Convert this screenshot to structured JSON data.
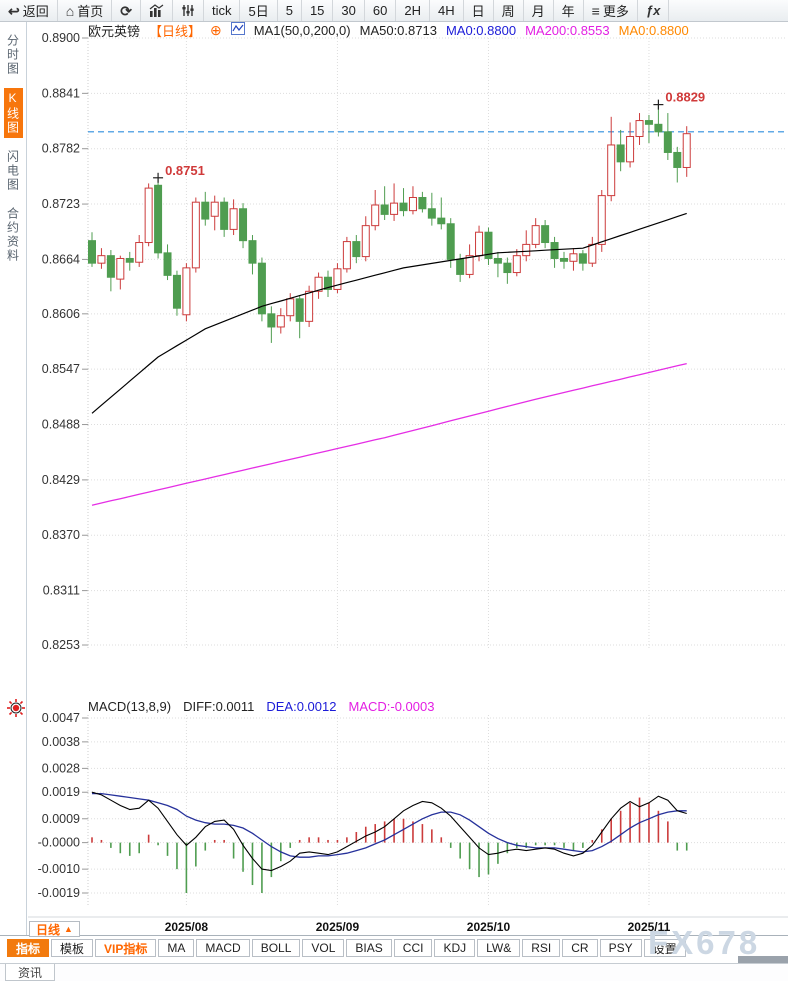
{
  "icons": {
    "back": "↩",
    "home": "⌂",
    "refresh": "⟳",
    "menu": "≡",
    "fx": "ƒx",
    "plus_circle": "⊕",
    "triangle_up": "▲"
  },
  "toolbar": {
    "items": [
      {
        "name": "back",
        "icon": "back",
        "label": "返回"
      },
      {
        "name": "home",
        "icon": "home",
        "label": "首页"
      },
      {
        "name": "refresh",
        "icon": "refresh",
        "label": ""
      },
      {
        "name": "chart-type",
        "icon": "bars",
        "label": ""
      },
      {
        "name": "indicator-settings",
        "icon": "sliders",
        "label": ""
      },
      {
        "name": "interval-tick",
        "label": "tick"
      },
      {
        "name": "interval-5d",
        "label": "5日"
      },
      {
        "name": "interval-5m",
        "label": "5"
      },
      {
        "name": "interval-15m",
        "label": "15"
      },
      {
        "name": "interval-30m",
        "label": "30"
      },
      {
        "name": "interval-60m",
        "label": "60"
      },
      {
        "name": "interval-2h",
        "label": "2H"
      },
      {
        "name": "interval-4h",
        "label": "4H"
      },
      {
        "name": "interval-day",
        "label": "日"
      },
      {
        "name": "interval-week",
        "label": "周"
      },
      {
        "name": "interval-month",
        "label": "月"
      },
      {
        "name": "interval-year",
        "label": "年"
      },
      {
        "name": "more",
        "icon": "menu",
        "label": "更多"
      },
      {
        "name": "formula",
        "icon": "fx",
        "label": ""
      }
    ]
  },
  "sidebar": {
    "items": [
      {
        "name": "time-chart",
        "label": "分时图",
        "active": false
      },
      {
        "name": "kline-chart",
        "label": "K线图",
        "active": true
      },
      {
        "name": "flash-chart",
        "label": "闪电图",
        "active": false
      },
      {
        "name": "contract-info",
        "label": "合约资料",
        "active": false
      }
    ]
  },
  "chart_header": {
    "symbol": "欧元英镑",
    "period": "【日线】",
    "ma_settings": "MA1(50,0,200,0)",
    "ma50": "MA50:0.8713",
    "ma0_fast": "MA0:0.8800",
    "ma200": "MA200:0.8553",
    "ma0_slow": "MA0:0.8800"
  },
  "macd_header": {
    "title": "MACD(13,8,9)",
    "diff": "DIFF:0.0011",
    "dea": "DEA:0.0012",
    "macd": "MACD:-0.0003"
  },
  "bottom": {
    "period_label": "日线",
    "tabs": [
      {
        "name": "indicator",
        "label": "指标",
        "active": true
      },
      {
        "name": "template",
        "label": "模板"
      },
      {
        "name": "vip-indicator",
        "label": "VIP指标",
        "vip": true
      },
      {
        "name": "ma",
        "label": "MA"
      },
      {
        "name": "macd",
        "label": "MACD"
      },
      {
        "name": "boll",
        "label": "BOLL"
      },
      {
        "name": "vol",
        "label": "VOL"
      },
      {
        "name": "bias",
        "label": "BIAS"
      },
      {
        "name": "cci",
        "label": "CCI"
      },
      {
        "name": "kdj",
        "label": "KDJ"
      },
      {
        "name": "lw",
        "label": "LW&"
      },
      {
        "name": "rsi",
        "label": "RSI"
      },
      {
        "name": "cr",
        "label": "CR"
      },
      {
        "name": "psy",
        "label": "PSY"
      },
      {
        "name": "settings",
        "label": "设置"
      }
    ],
    "watermark": "FX678",
    "news_tab": "资讯"
  },
  "chart_data": {
    "type": "candlestick+macd",
    "symbol": "EUR/GBP daily",
    "main": {
      "y_ticks": [
        {
          "label": "0.8900",
          "value": 0.89
        },
        {
          "label": "0.8841",
          "value": 0.8841
        },
        {
          "label": "0.8782",
          "value": 0.8782
        },
        {
          "label": "0.8723",
          "value": 0.8723
        },
        {
          "label": "0.8664",
          "value": 0.8664
        },
        {
          "label": "0.8606",
          "value": 0.8606
        },
        {
          "label": "0.8547",
          "value": 0.8547
        },
        {
          "label": "0.8488",
          "value": 0.8488
        },
        {
          "label": "0.8429",
          "value": 0.8429
        },
        {
          "label": "0.8370",
          "value": 0.837
        },
        {
          "label": "0.8311",
          "value": 0.8311
        },
        {
          "label": "0.8253",
          "value": 0.8253
        }
      ],
      "x_ticks": [
        {
          "label": "2025/08",
          "index": 11
        },
        {
          "label": "2025/09",
          "index": 27
        },
        {
          "label": "2025/10",
          "index": 43
        },
        {
          "label": "2025/11",
          "index": 60
        }
      ],
      "last_price_line": 0.88,
      "markers": [
        {
          "index": 8,
          "price": 0.8751,
          "label": "0.8751"
        },
        {
          "index": 61,
          "price": 0.8829,
          "label": "0.8829"
        }
      ],
      "candles": [
        [
          0.8684,
          0.8693,
          0.8656,
          0.866
        ],
        [
          0.866,
          0.8676,
          0.8654,
          0.8668
        ],
        [
          0.8668,
          0.8674,
          0.863,
          0.8645
        ],
        [
          0.8643,
          0.8668,
          0.8632,
          0.8665
        ],
        [
          0.8665,
          0.8672,
          0.8652,
          0.8661
        ],
        [
          0.8661,
          0.869,
          0.8656,
          0.8682
        ],
        [
          0.8682,
          0.8745,
          0.8678,
          0.874
        ],
        [
          0.8743,
          0.8751,
          0.8665,
          0.8671
        ],
        [
          0.8671,
          0.868,
          0.8642,
          0.8647
        ],
        [
          0.8647,
          0.8652,
          0.8604,
          0.8612
        ],
        [
          0.8605,
          0.866,
          0.8598,
          0.8655
        ],
        [
          0.8655,
          0.873,
          0.865,
          0.8725
        ],
        [
          0.8725,
          0.8736,
          0.87,
          0.8707
        ],
        [
          0.871,
          0.8732,
          0.8695,
          0.8725
        ],
        [
          0.8725,
          0.873,
          0.8688,
          0.8696
        ],
        [
          0.8696,
          0.8728,
          0.869,
          0.8718
        ],
        [
          0.8718,
          0.8724,
          0.8676,
          0.8684
        ],
        [
          0.8684,
          0.869,
          0.8648,
          0.866
        ],
        [
          0.866,
          0.8666,
          0.8598,
          0.8606
        ],
        [
          0.8606,
          0.8614,
          0.8575,
          0.8592
        ],
        [
          0.8592,
          0.8612,
          0.8585,
          0.8604
        ],
        [
          0.8604,
          0.8628,
          0.8598,
          0.8622
        ],
        [
          0.8622,
          0.8626,
          0.858,
          0.8598
        ],
        [
          0.8598,
          0.8636,
          0.8592,
          0.863
        ],
        [
          0.863,
          0.865,
          0.8622,
          0.8645
        ],
        [
          0.8645,
          0.8652,
          0.8624,
          0.8632
        ],
        [
          0.8632,
          0.866,
          0.8628,
          0.8654
        ],
        [
          0.8654,
          0.8688,
          0.865,
          0.8683
        ],
        [
          0.8683,
          0.869,
          0.866,
          0.8667
        ],
        [
          0.8667,
          0.871,
          0.8662,
          0.87
        ],
        [
          0.87,
          0.8738,
          0.8695,
          0.8722
        ],
        [
          0.8722,
          0.8742,
          0.8706,
          0.8712
        ],
        [
          0.8712,
          0.8745,
          0.8705,
          0.8724
        ],
        [
          0.8724,
          0.874,
          0.871,
          0.8716
        ],
        [
          0.8716,
          0.8742,
          0.8712,
          0.873
        ],
        [
          0.873,
          0.8736,
          0.8714,
          0.8718
        ],
        [
          0.8718,
          0.8735,
          0.87,
          0.8708
        ],
        [
          0.8708,
          0.873,
          0.8696,
          0.8702
        ],
        [
          0.8702,
          0.8708,
          0.8655,
          0.8664
        ],
        [
          0.8664,
          0.867,
          0.864,
          0.8648
        ],
        [
          0.8648,
          0.868,
          0.8644,
          0.8668
        ],
        [
          0.8668,
          0.87,
          0.8662,
          0.8693
        ],
        [
          0.8693,
          0.8698,
          0.8658,
          0.8665
        ],
        [
          0.8665,
          0.8672,
          0.8645,
          0.866
        ],
        [
          0.866,
          0.8666,
          0.8638,
          0.865
        ],
        [
          0.865,
          0.8675,
          0.8646,
          0.8668
        ],
        [
          0.8668,
          0.8695,
          0.8662,
          0.868
        ],
        [
          0.868,
          0.8708,
          0.8676,
          0.87
        ],
        [
          0.87,
          0.8706,
          0.8676,
          0.8682
        ],
        [
          0.8682,
          0.8688,
          0.8655,
          0.8665
        ],
        [
          0.8665,
          0.8672,
          0.8654,
          0.8662
        ],
        [
          0.8662,
          0.8676,
          0.8652,
          0.867
        ],
        [
          0.867,
          0.8674,
          0.8652,
          0.866
        ],
        [
          0.866,
          0.8688,
          0.8656,
          0.868
        ],
        [
          0.868,
          0.8738,
          0.8672,
          0.8732
        ],
        [
          0.8732,
          0.8816,
          0.8726,
          0.8786
        ],
        [
          0.8786,
          0.8802,
          0.8758,
          0.8768
        ],
        [
          0.8768,
          0.881,
          0.8762,
          0.8795
        ],
        [
          0.8795,
          0.882,
          0.8786,
          0.8812
        ],
        [
          0.8812,
          0.8818,
          0.8788,
          0.8808
        ],
        [
          0.8808,
          0.8829,
          0.8795,
          0.88
        ],
        [
          0.88,
          0.882,
          0.877,
          0.8778
        ],
        [
          0.8778,
          0.8784,
          0.8746,
          0.8762
        ],
        [
          0.8762,
          0.8806,
          0.8752,
          0.8798
        ]
      ],
      "ma50_waypoints": [
        [
          1,
          0.85
        ],
        [
          8,
          0.856
        ],
        [
          13,
          0.859
        ],
        [
          19,
          0.8614
        ],
        [
          26,
          0.8634
        ],
        [
          34,
          0.8655
        ],
        [
          44,
          0.8671
        ],
        [
          53,
          0.8676
        ],
        [
          64,
          0.8713
        ]
      ],
      "ma200_waypoints": [
        [
          1,
          0.8402
        ],
        [
          16,
          0.8437
        ],
        [
          32,
          0.8474
        ],
        [
          48,
          0.8515
        ],
        [
          64,
          0.8553
        ]
      ],
      "colors": {
        "up": "#cc3b3b",
        "down": "#4f9d50",
        "ma50": "#000000",
        "ma200": "#e52ee5",
        "last_price": "#2e8ede"
      }
    },
    "macd": {
      "y_ticks": [
        {
          "label": "0.0047",
          "value": 0.0047
        },
        {
          "label": "0.0038",
          "value": 0.0038
        },
        {
          "label": "0.0028",
          "value": 0.0028
        },
        {
          "label": "0.0019",
          "value": 0.0019
        },
        {
          "label": "0.0009",
          "value": 0.0009
        },
        {
          "label": "-0.0000",
          "value": 0.0
        },
        {
          "label": "-0.0010",
          "value": -0.001
        },
        {
          "label": "-0.0019",
          "value": -0.0019
        }
      ],
      "unit": 0.0001,
      "diff": [
        19,
        18,
        16,
        14,
        12.5,
        13,
        16,
        13,
        8,
        3,
        -1,
        2,
        6,
        8,
        8.5,
        5,
        -1,
        -6,
        -10,
        -10.5,
        -9,
        -7,
        -4,
        -3.5,
        -4,
        -4.5,
        -3.5,
        -1.5,
        0.5,
        2.5,
        4,
        6,
        9,
        12,
        14,
        15.5,
        15,
        13,
        10,
        6,
        2,
        -2,
        -4.5,
        -4,
        -3,
        -2.5,
        -3,
        -2.5,
        -2,
        -2.5,
        -4,
        -5,
        -4,
        -1,
        4,
        9,
        13,
        15.5,
        13.5,
        15,
        17.5,
        16,
        12,
        11
      ],
      "dea": [
        18.5,
        18.5,
        18,
        17.5,
        17,
        16.5,
        16,
        15,
        14,
        12.5,
        10,
        8.5,
        7.5,
        7,
        7,
        6.5,
        5.5,
        3.5,
        1,
        -1.5,
        -3.5,
        -5,
        -5.5,
        -5.5,
        -5,
        -5,
        -4.5,
        -4,
        -3,
        -2,
        -0.5,
        1,
        3,
        5,
        7,
        9,
        10.5,
        11.5,
        11.5,
        10.5,
        8.5,
        6,
        3.5,
        1.5,
        0,
        -1,
        -1.5,
        -2,
        -2,
        -2,
        -2.5,
        -3,
        -3.5,
        -3,
        -1.5,
        0.5,
        3,
        5.5,
        7.5,
        9,
        10.5,
        11.5,
        12,
        12
      ],
      "hist": [
        2,
        1,
        -2,
        -4,
        -5,
        -4,
        3,
        -1,
        -5,
        -10,
        -19,
        -9,
        -3,
        1,
        1,
        -6,
        -11,
        -16,
        -19,
        -13,
        -7,
        -2,
        1,
        2,
        2,
        1,
        1,
        2,
        4,
        6,
        7,
        8,
        9,
        9,
        8,
        7,
        5,
        2,
        -2,
        -6,
        -10,
        -13,
        -12,
        -8,
        -4,
        -2,
        -2,
        -1,
        -1,
        -1,
        -2,
        -3,
        -2,
        1,
        5,
        9,
        12,
        15,
        17,
        15,
        12,
        8,
        -3,
        -3
      ],
      "colors": {
        "diff": "#000000",
        "dea": "#26319b",
        "pos": "#cc3b3b",
        "neg": "#4f9d50"
      }
    }
  }
}
